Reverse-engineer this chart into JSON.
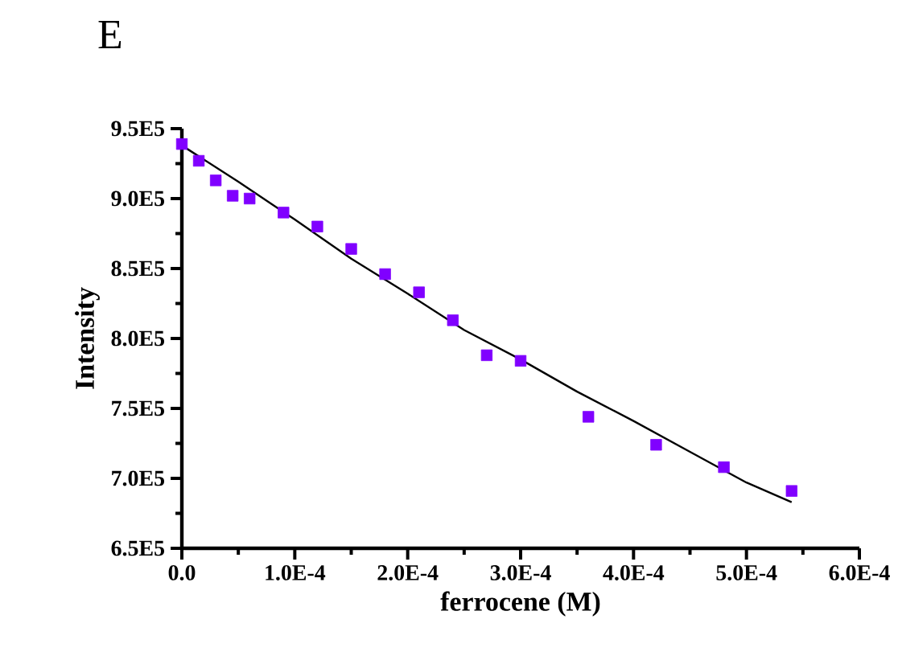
{
  "chart_data": {
    "type": "scatter",
    "title": "E",
    "xlabel": "ferrocene (M)",
    "ylabel": "Intensity",
    "xlim": [
      0,
      0.0006
    ],
    "ylim": [
      650000,
      950000
    ],
    "xticks": [
      {
        "value": 0,
        "label": "0.0"
      },
      {
        "value": 0.0001,
        "label": "1.0E-4"
      },
      {
        "value": 0.0002,
        "label": "2.0E-4"
      },
      {
        "value": 0.0003,
        "label": "3.0E-4"
      },
      {
        "value": 0.0004,
        "label": "4.0E-4"
      },
      {
        "value": 0.0005,
        "label": "5.0E-4"
      },
      {
        "value": 0.0006,
        "label": "6.0E-4"
      }
    ],
    "yticks": [
      {
        "value": 650000,
        "label": "6.5E5"
      },
      {
        "value": 700000,
        "label": "7.0E5"
      },
      {
        "value": 750000,
        "label": "7.5E5"
      },
      {
        "value": 800000,
        "label": "8.0E5"
      },
      {
        "value": 850000,
        "label": "8.5E5"
      },
      {
        "value": 900000,
        "label": "9.0E5"
      },
      {
        "value": 950000,
        "label": "9.5E5"
      }
    ],
    "marker": "square",
    "grid": false,
    "series": [
      {
        "color": "#8000ff",
        "x": [
          0,
          1.5e-05,
          3e-05,
          4.5e-05,
          6e-05,
          9e-05,
          0.00012,
          0.00015,
          0.00018,
          0.00021,
          0.00024,
          0.00027,
          0.0003,
          0.00036,
          0.00042,
          0.00048,
          0.00054
        ],
        "values": [
          939000,
          927000,
          913000,
          902000,
          900000,
          890000,
          880000,
          864000,
          846000,
          833000,
          813000,
          788000,
          784000,
          744000,
          724000,
          708000,
          691000
        ]
      },
      {
        "type": "line",
        "color": "#000000",
        "marker": "none",
        "x": [
          0,
          5e-05,
          0.0001,
          0.00015,
          0.0002,
          0.00025,
          0.0003,
          0.00035,
          0.0004,
          0.00045,
          0.0005,
          0.00054
        ],
        "values": [
          938000,
          912000,
          885000,
          857000,
          832000,
          806000,
          785000,
          762000,
          741000,
          719000,
          697000,
          683000
        ]
      }
    ]
  }
}
